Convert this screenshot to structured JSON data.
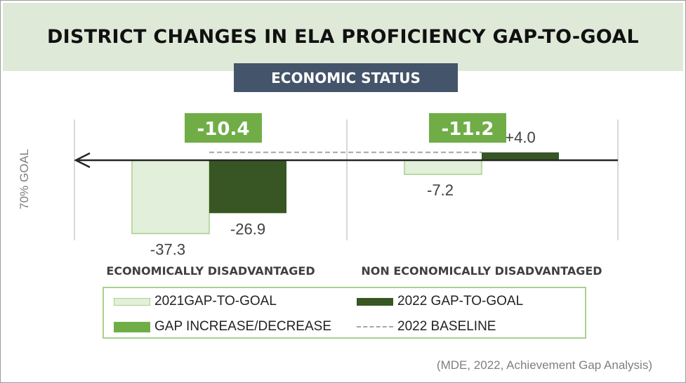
{
  "title": "DISTRICT CHANGES IN ELA PROFICIENCY GAP-TO-GOAL",
  "subtitle": "ECONOMIC STATUS",
  "source": "(MDE, 2022, Achievement Gap Analysis)",
  "colors": {
    "gap_2021_fill": "#e2efda",
    "gap_2021_border": "#a9d18e",
    "gap_2022": "#375623",
    "gap_change": "#70ad47",
    "baseline": "#a6a6a6",
    "axis": "#262626",
    "title_band": "#dfe9d8",
    "subtitle_box": "#44546a"
  },
  "chart_data": {
    "type": "bar",
    "title": "DISTRICT CHANGES IN ELA PROFICIENCY GAP-TO-GOAL",
    "subtitle": "ECONOMIC STATUS",
    "ylabel": "70% GOAL",
    "xlabel": "",
    "ylim": [
      -40,
      10
    ],
    "categories": [
      "ECONOMICALLY DISADVANTAGED",
      "NON ECONOMICALLY DISADVANTAGED"
    ],
    "series": [
      {
        "name": "2021GAP-TO-GOAL",
        "values": [
          -37.3,
          -7.2
        ],
        "labels": [
          "-37.3",
          "-7.2"
        ]
      },
      {
        "name": "2022 GAP-TO-GOAL",
        "values": [
          -26.9,
          4.0
        ],
        "labels": [
          "-26.9",
          "+4.0"
        ]
      }
    ],
    "gap_change": {
      "name": "GAP INCREASE/DECREASE",
      "values": [
        -10.4,
        -11.2
      ],
      "labels": [
        "-10.4",
        "-11.2"
      ]
    },
    "baseline": {
      "name": "2022 BASELINE"
    },
    "legend": [
      "2021GAP-TO-GOAL",
      "2022 GAP-TO-GOAL",
      "GAP INCREASE/DECREASE",
      "2022 BASELINE"
    ]
  }
}
